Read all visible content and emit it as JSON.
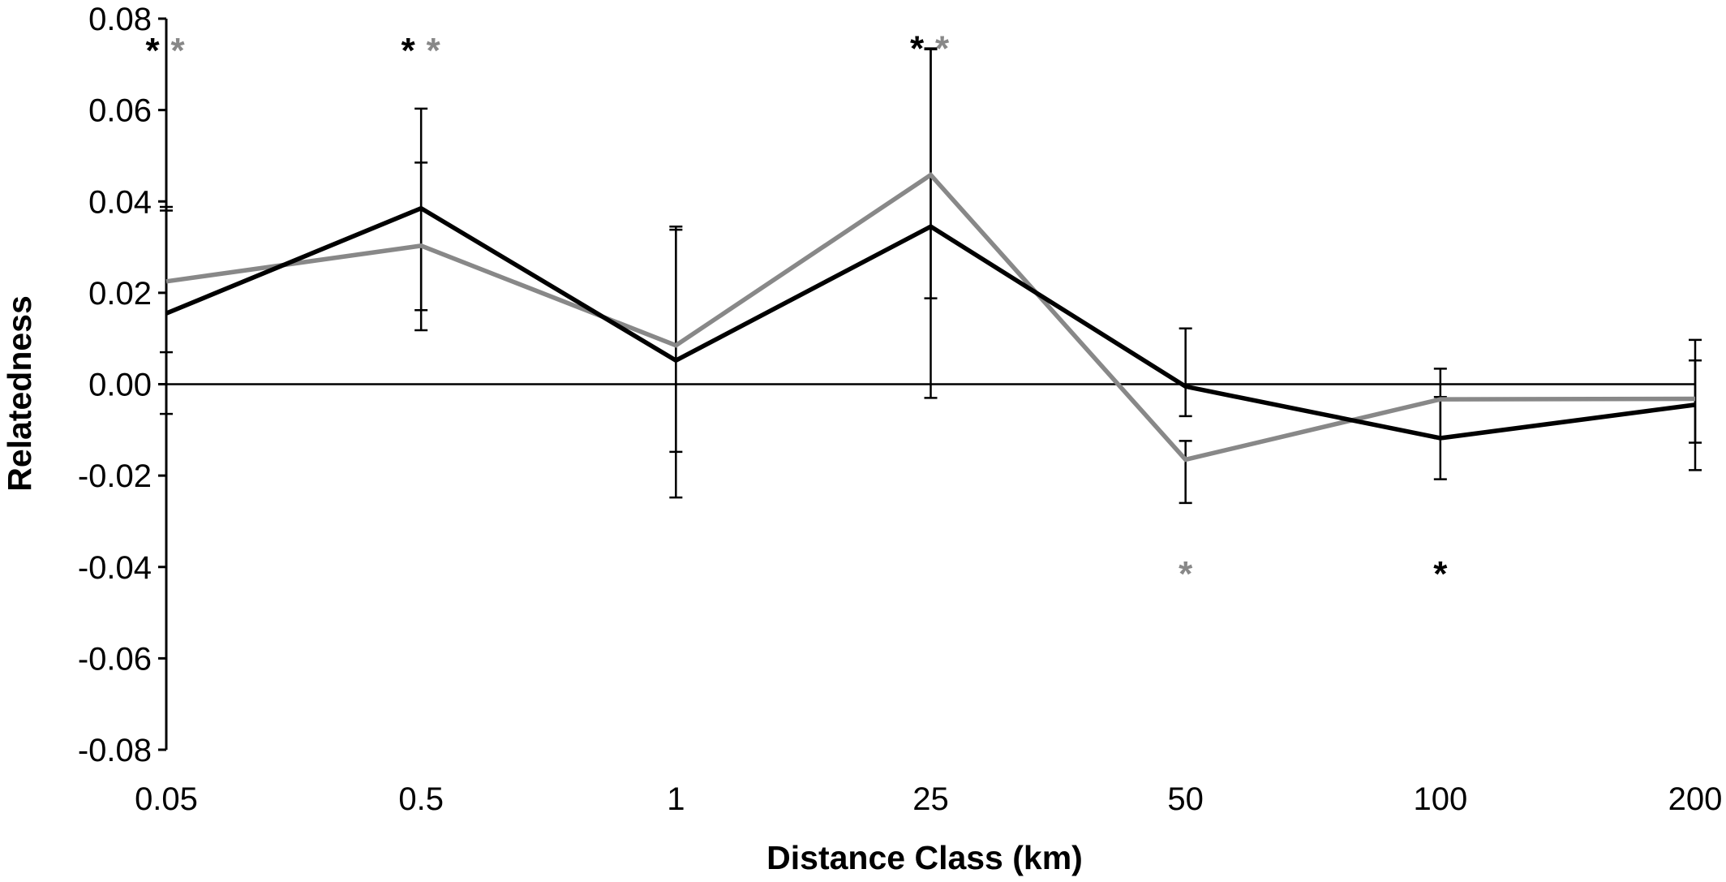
{
  "chart_data": {
    "type": "line",
    "title": "",
    "xlabel": "Distance Class (km)",
    "ylabel": "Relatedness",
    "categories": [
      "0.05",
      "0.5",
      "1",
      "25",
      "50",
      "100",
      "200"
    ],
    "ylim": [
      -0.08,
      0.08
    ],
    "yticks": [
      "0.08",
      "0.06",
      "0.04",
      "0.02",
      "0.00",
      "-0.02",
      "-0.04",
      "-0.06",
      "-0.08"
    ],
    "grid": false,
    "legend": "none",
    "series": [
      {
        "color": "#000000",
        "values": [
          0.0155,
          0.0385,
          0.0052,
          0.0345,
          -0.0005,
          -0.0118,
          -0.0045
        ],
        "error_low": [
          -0.0065,
          0.0162,
          -0.0248,
          -0.003,
          -0.007,
          -0.0208,
          -0.0188
        ],
        "error_high": [
          0.038,
          0.0603,
          0.0338,
          0.0733,
          0.0122,
          0.0034,
          0.0097
        ]
      },
      {
        "color": "#888888",
        "values": [
          0.0225,
          0.0303,
          0.0085,
          0.0458,
          -0.0165,
          -0.0033,
          -0.0032
        ],
        "error_low": [
          0.007,
          0.0118,
          -0.0148,
          0.0188,
          -0.026,
          -0.0118,
          -0.0128
        ],
        "error_high": [
          0.0388,
          0.0485,
          0.0345,
          0.0735,
          -0.0124,
          -0.0028,
          0.0052
        ]
      }
    ],
    "annotations": [
      {
        "text": "*",
        "category": "0.05",
        "y": 0.075,
        "color": "#000000",
        "dx": -17
      },
      {
        "text": "*",
        "category": "0.05",
        "y": 0.075,
        "color": "#888888",
        "dx": 14
      },
      {
        "text": "*",
        "category": "0.5",
        "y": 0.075,
        "color": "#000000",
        "dx": -16
      },
      {
        "text": "*",
        "category": "0.5",
        "y": 0.075,
        "color": "#888888",
        "dx": 15
      },
      {
        "text": "*",
        "category": "25",
        "y": 0.0755,
        "color": "#000000",
        "dx": -17
      },
      {
        "text": "*",
        "category": "25",
        "y": 0.0755,
        "color": "#888888",
        "dx": 14
      },
      {
        "text": "*",
        "category": "50",
        "y": -0.0395,
        "color": "#888888",
        "dx": 0
      },
      {
        "text": "*",
        "category": "100",
        "y": -0.0395,
        "color": "#000000",
        "dx": 0
      }
    ]
  }
}
